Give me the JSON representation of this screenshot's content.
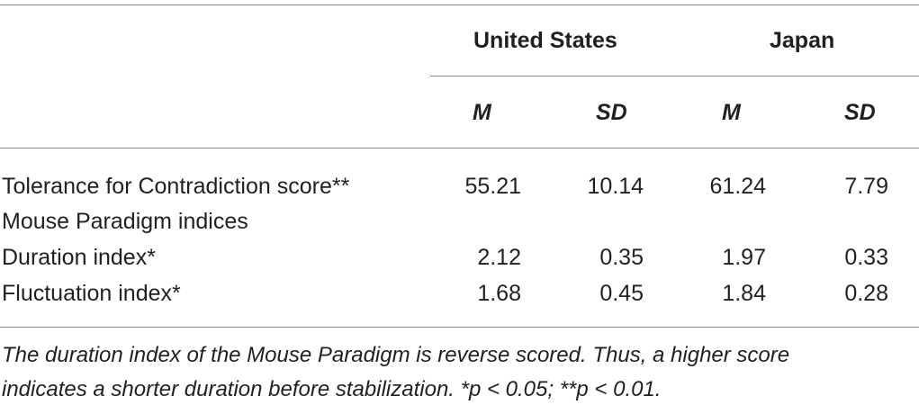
{
  "table": {
    "groups": [
      "United States",
      "Japan"
    ],
    "subheaders": [
      "M",
      "SD",
      "M",
      "SD"
    ],
    "rows": [
      {
        "label": "Tolerance for Contradiction score**",
        "values": [
          "55.21",
          "10.14",
          "61.24",
          "7.79"
        ]
      },
      {
        "label": "Mouse Paradigm indices",
        "values": [
          "",
          "",
          "",
          ""
        ]
      },
      {
        "label": "Duration index*",
        "values": [
          "2.12",
          "0.35",
          "1.97",
          "0.33"
        ]
      },
      {
        "label": "Fluctuation index*",
        "values": [
          "1.68",
          "0.45",
          "1.84",
          "0.28"
        ]
      }
    ],
    "footnote": [
      "The duration index of the Mouse Paradigm is reverse scored. Thus, a higher score",
      "indicates a shorter duration before stabilization.  *p < 0.05;  **p < 0.01."
    ]
  }
}
